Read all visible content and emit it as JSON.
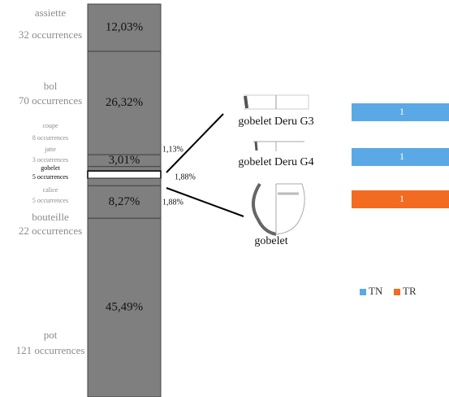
{
  "chart_data": [
    {
      "type": "stacked-column",
      "segments": [
        {
          "name": "assiette",
          "count_label": "32 occurrences",
          "value": 12.03,
          "value_label": "12,03%",
          "label_position": "inside"
        },
        {
          "name": "bol",
          "count_label": "70 occurrences",
          "value": 26.32,
          "value_label": "26,32%",
          "label_position": "inside"
        },
        {
          "name": "coupe",
          "count_label": "8 occurrences",
          "value": 3.01,
          "value_label": "3,01%",
          "label_position": "inside"
        },
        {
          "name": "jatte",
          "count_label": "3 occurrences",
          "value": 1.13,
          "value_label": "1,13%",
          "label_position": "outside"
        },
        {
          "name": "gobelet",
          "count_label": "5 occurrences",
          "value": 1.88,
          "value_label": "1,88%",
          "label_position": "outside"
        },
        {
          "name": "calice",
          "count_label": "5 occurrences",
          "value": 1.88,
          "value_label": "1,88%",
          "label_position": "outside"
        },
        {
          "name": "bouteille",
          "count_label": "22 occurrences",
          "value": 8.27,
          "value_label": "8,27%",
          "label_position": "inside"
        },
        {
          "name": "pot",
          "count_label": "121 occurrences",
          "value": 45.49,
          "value_label": "45,49%",
          "label_position": "inside"
        }
      ],
      "color": "#7f7f7f",
      "highlight_color": "#ffffff"
    },
    {
      "type": "hbar",
      "categories": [
        "gobelet Deru G3",
        "gobelet Deru G4",
        "gobelet"
      ],
      "series": [
        {
          "name": "TN",
          "color": "#5aa9e6",
          "values": [
            1,
            1,
            null
          ]
        },
        {
          "name": "TR",
          "color": "#f26b21",
          "values": [
            null,
            null,
            1
          ]
        }
      ],
      "legend": "right"
    }
  ]
}
